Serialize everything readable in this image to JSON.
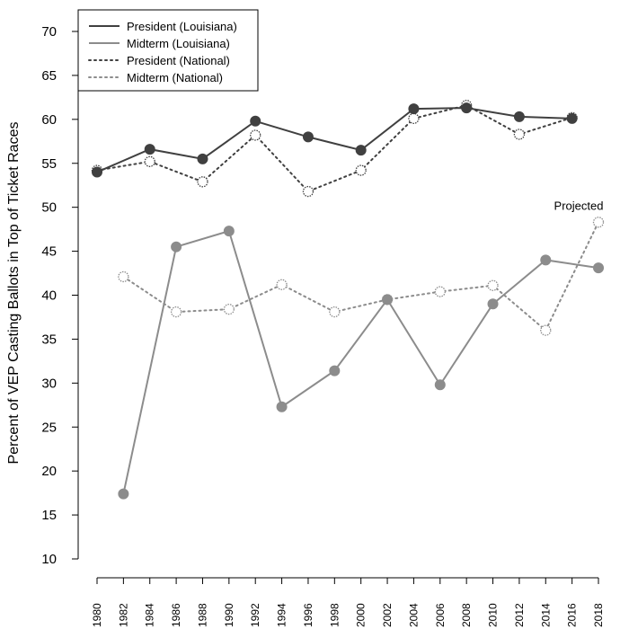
{
  "chart_data": {
    "type": "line",
    "ylabel": "Percent of VEP Casting Ballots in Top of Ticket Races",
    "xlabel": "",
    "ylim": [
      10,
      70
    ],
    "yticks": [
      10,
      15,
      20,
      25,
      30,
      35,
      40,
      45,
      50,
      55,
      60,
      65,
      70
    ],
    "xticks": [
      1980,
      1982,
      1984,
      1986,
      1988,
      1990,
      1992,
      1994,
      1996,
      1998,
      2000,
      2002,
      2004,
      2006,
      2008,
      2010,
      2012,
      2014,
      2016,
      2018
    ],
    "legend_position": "top-left",
    "annotation": {
      "text": "Projected",
      "year": 2018,
      "value": 48.3
    },
    "series": [
      {
        "name": "President (Louisiana)",
        "style": "solid",
        "marker": "filled",
        "color": "#404040",
        "x": [
          1980,
          1984,
          1988,
          1992,
          1996,
          2000,
          2004,
          2008,
          2012,
          2016
        ],
        "values": [
          54.0,
          56.6,
          55.5,
          59.8,
          58.0,
          56.5,
          61.2,
          61.3,
          60.3,
          60.1
        ]
      },
      {
        "name": "Midterm (Louisiana)",
        "style": "solid",
        "marker": "filled",
        "color": "#8c8c8c",
        "x": [
          1982,
          1986,
          1990,
          1994,
          1998,
          2002,
          2006,
          2010,
          2014,
          2018
        ],
        "values": [
          17.4,
          45.5,
          47.3,
          27.3,
          31.4,
          39.5,
          29.8,
          39.0,
          44.0,
          43.1
        ]
      },
      {
        "name": "President (National)",
        "style": "dotted",
        "marker": "open",
        "color": "#404040",
        "x": [
          1980,
          1984,
          1988,
          1992,
          1996,
          2000,
          2004,
          2008,
          2012,
          2016
        ],
        "values": [
          54.2,
          55.2,
          52.9,
          58.2,
          51.8,
          54.2,
          60.1,
          61.6,
          58.3,
          60.2
        ]
      },
      {
        "name": "Midterm (National)",
        "style": "dotted",
        "marker": "open",
        "color": "#8c8c8c",
        "x": [
          1982,
          1986,
          1990,
          1994,
          1998,
          2002,
          2006,
          2010,
          2014,
          2018
        ],
        "values": [
          42.1,
          38.1,
          38.4,
          41.2,
          38.1,
          39.5,
          40.4,
          41.1,
          36.0,
          48.3
        ]
      }
    ]
  }
}
